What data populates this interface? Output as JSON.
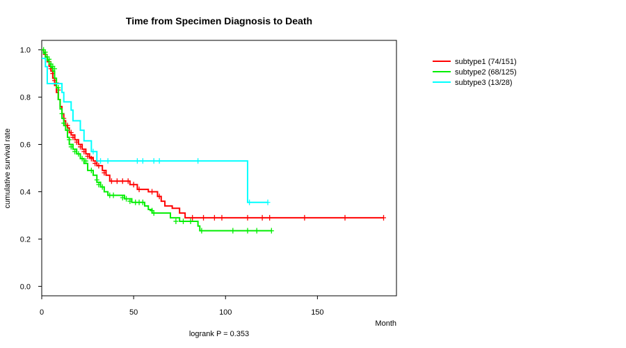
{
  "chart_data": {
    "type": "line",
    "subtype": "kaplan-meier",
    "title": "Time from Specimen Diagnosis to Death",
    "xlabel": "Month",
    "ylabel": "cumulative survival rate",
    "xlim": [
      0,
      193
    ],
    "ylim": [
      -0.04,
      1.04
    ],
    "xticks": [
      0,
      50,
      100,
      150
    ],
    "yticks": [
      0.0,
      0.2,
      0.4,
      0.6,
      0.8,
      1.0
    ],
    "ytick_labels": [
      "0.0",
      "0.2",
      "0.4",
      "0.6",
      "0.8",
      "1.0"
    ],
    "annotation": "logrank P = 0.353",
    "legend_position": "top-right-outside",
    "series": [
      {
        "name": "subtype1 (74/151)",
        "color": "#ff0000",
        "steps": [
          [
            0,
            1.0
          ],
          [
            1,
            0.99
          ],
          [
            2,
            0.97
          ],
          [
            3,
            0.95
          ],
          [
            4,
            0.93
          ],
          [
            5,
            0.91
          ],
          [
            6,
            0.88
          ],
          [
            7,
            0.85
          ],
          [
            8,
            0.82
          ],
          [
            9,
            0.79
          ],
          [
            10,
            0.76
          ],
          [
            11,
            0.73
          ],
          [
            12,
            0.7
          ],
          [
            13,
            0.68
          ],
          [
            14,
            0.67
          ],
          [
            15,
            0.65
          ],
          [
            16,
            0.64
          ],
          [
            18,
            0.62
          ],
          [
            20,
            0.6
          ],
          [
            22,
            0.58
          ],
          [
            24,
            0.56
          ],
          [
            26,
            0.545
          ],
          [
            28,
            0.53
          ],
          [
            30,
            0.51
          ],
          [
            33,
            0.49
          ],
          [
            35,
            0.47
          ],
          [
            37,
            0.445
          ],
          [
            48,
            0.43
          ],
          [
            52,
            0.41
          ],
          [
            58,
            0.4
          ],
          [
            63,
            0.38
          ],
          [
            65,
            0.36
          ],
          [
            67,
            0.34
          ],
          [
            71,
            0.33
          ],
          [
            75,
            0.31
          ],
          [
            78,
            0.29
          ],
          [
            186,
            0.29
          ]
        ],
        "censored": [
          [
            2,
            0.98
          ],
          [
            4,
            0.95
          ],
          [
            5,
            0.92
          ],
          [
            6,
            0.9
          ],
          [
            7,
            0.87
          ],
          [
            8,
            0.86
          ],
          [
            9,
            0.83
          ],
          [
            12,
            0.71
          ],
          [
            14,
            0.68
          ],
          [
            16,
            0.65
          ],
          [
            17,
            0.63
          ],
          [
            19,
            0.61
          ],
          [
            21,
            0.59
          ],
          [
            23,
            0.57
          ],
          [
            25,
            0.55
          ],
          [
            27,
            0.54
          ],
          [
            29,
            0.52
          ],
          [
            31,
            0.51
          ],
          [
            34,
            0.48
          ],
          [
            38,
            0.445
          ],
          [
            41,
            0.445
          ],
          [
            44,
            0.445
          ],
          [
            47,
            0.445
          ],
          [
            50,
            0.43
          ],
          [
            53,
            0.41
          ],
          [
            60,
            0.4
          ],
          [
            64,
            0.38
          ],
          [
            82,
            0.29
          ],
          [
            88,
            0.29
          ],
          [
            94,
            0.29
          ],
          [
            98,
            0.29
          ],
          [
            112,
            0.29
          ],
          [
            120,
            0.29
          ],
          [
            124,
            0.29
          ],
          [
            143,
            0.29
          ],
          [
            165,
            0.29
          ],
          [
            186,
            0.29
          ]
        ]
      },
      {
        "name": "subtype2 (68/125)",
        "color": "#00ee00",
        "steps": [
          [
            0,
            1.0
          ],
          [
            1,
            0.985
          ],
          [
            2,
            0.97
          ],
          [
            3,
            0.955
          ],
          [
            4,
            0.94
          ],
          [
            5,
            0.925
          ],
          [
            6,
            0.91
          ],
          [
            7,
            0.88
          ],
          [
            8,
            0.84
          ],
          [
            9,
            0.79
          ],
          [
            10,
            0.75
          ],
          [
            11,
            0.71
          ],
          [
            12,
            0.68
          ],
          [
            13,
            0.66
          ],
          [
            14,
            0.63
          ],
          [
            15,
            0.6
          ],
          [
            17,
            0.58
          ],
          [
            19,
            0.56
          ],
          [
            21,
            0.54
          ],
          [
            23,
            0.52
          ],
          [
            25,
            0.49
          ],
          [
            28,
            0.47
          ],
          [
            30,
            0.44
          ],
          [
            32,
            0.42
          ],
          [
            34,
            0.4
          ],
          [
            36,
            0.385
          ],
          [
            45,
            0.37
          ],
          [
            49,
            0.355
          ],
          [
            56,
            0.34
          ],
          [
            58,
            0.325
          ],
          [
            60,
            0.31
          ],
          [
            70,
            0.29
          ],
          [
            75,
            0.275
          ],
          [
            85,
            0.255
          ],
          [
            86,
            0.235
          ],
          [
            125,
            0.235
          ]
        ],
        "censored": [
          [
            1,
            1.0
          ],
          [
            2,
            0.99
          ],
          [
            3,
            0.97
          ],
          [
            4,
            0.96
          ],
          [
            5,
            0.94
          ],
          [
            6,
            0.93
          ],
          [
            7,
            0.92
          ],
          [
            9,
            0.84
          ],
          [
            11,
            0.73
          ],
          [
            12,
            0.69
          ],
          [
            14,
            0.66
          ],
          [
            15,
            0.62
          ],
          [
            16,
            0.59
          ],
          [
            18,
            0.57
          ],
          [
            20,
            0.56
          ],
          [
            22,
            0.54
          ],
          [
            24,
            0.53
          ],
          [
            27,
            0.49
          ],
          [
            30,
            0.45
          ],
          [
            31,
            0.43
          ],
          [
            33,
            0.42
          ],
          [
            37,
            0.385
          ],
          [
            39,
            0.385
          ],
          [
            44,
            0.375
          ],
          [
            46,
            0.37
          ],
          [
            48,
            0.36
          ],
          [
            51,
            0.355
          ],
          [
            53,
            0.355
          ],
          [
            55,
            0.355
          ],
          [
            60,
            0.32
          ],
          [
            61,
            0.31
          ],
          [
            73,
            0.275
          ],
          [
            77,
            0.275
          ],
          [
            81,
            0.275
          ],
          [
            87,
            0.235
          ],
          [
            104,
            0.235
          ],
          [
            112,
            0.235
          ],
          [
            117,
            0.235
          ],
          [
            125,
            0.235
          ]
        ]
      },
      {
        "name": "subtype3 (13/28)",
        "color": "#00ffff",
        "steps": [
          [
            0,
            0.964
          ],
          [
            2,
            0.929
          ],
          [
            3,
            0.857
          ],
          [
            11,
            0.82
          ],
          [
            12,
            0.78
          ],
          [
            16,
            0.745
          ],
          [
            17,
            0.7
          ],
          [
            21,
            0.66
          ],
          [
            23,
            0.615
          ],
          [
            27,
            0.57
          ],
          [
            30,
            0.53
          ],
          [
            112,
            0.355
          ],
          [
            123,
            0.355
          ]
        ],
        "censored": [
          [
            28,
            0.57
          ],
          [
            32,
            0.53
          ],
          [
            36,
            0.53
          ],
          [
            52,
            0.53
          ],
          [
            55,
            0.53
          ],
          [
            61,
            0.53
          ],
          [
            64,
            0.53
          ],
          [
            85,
            0.53
          ],
          [
            113,
            0.355
          ],
          [
            123,
            0.355
          ]
        ]
      }
    ]
  }
}
